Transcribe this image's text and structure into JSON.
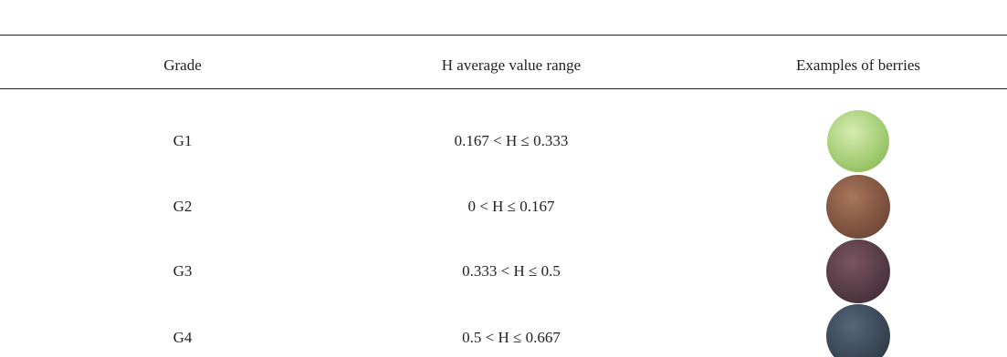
{
  "table": {
    "columns": [
      "Grade",
      "H average value range",
      "Examples of berries"
    ],
    "rows": [
      [
        "G1",
        "0.167 < H ≤ 0.333"
      ],
      [
        "G2",
        "0 < H ≤ 0.167"
      ],
      [
        "G3",
        "0.333 < H ≤ 0.5"
      ],
      [
        "G4",
        "0.5 < H ≤ 0.667"
      ]
    ]
  }
}
